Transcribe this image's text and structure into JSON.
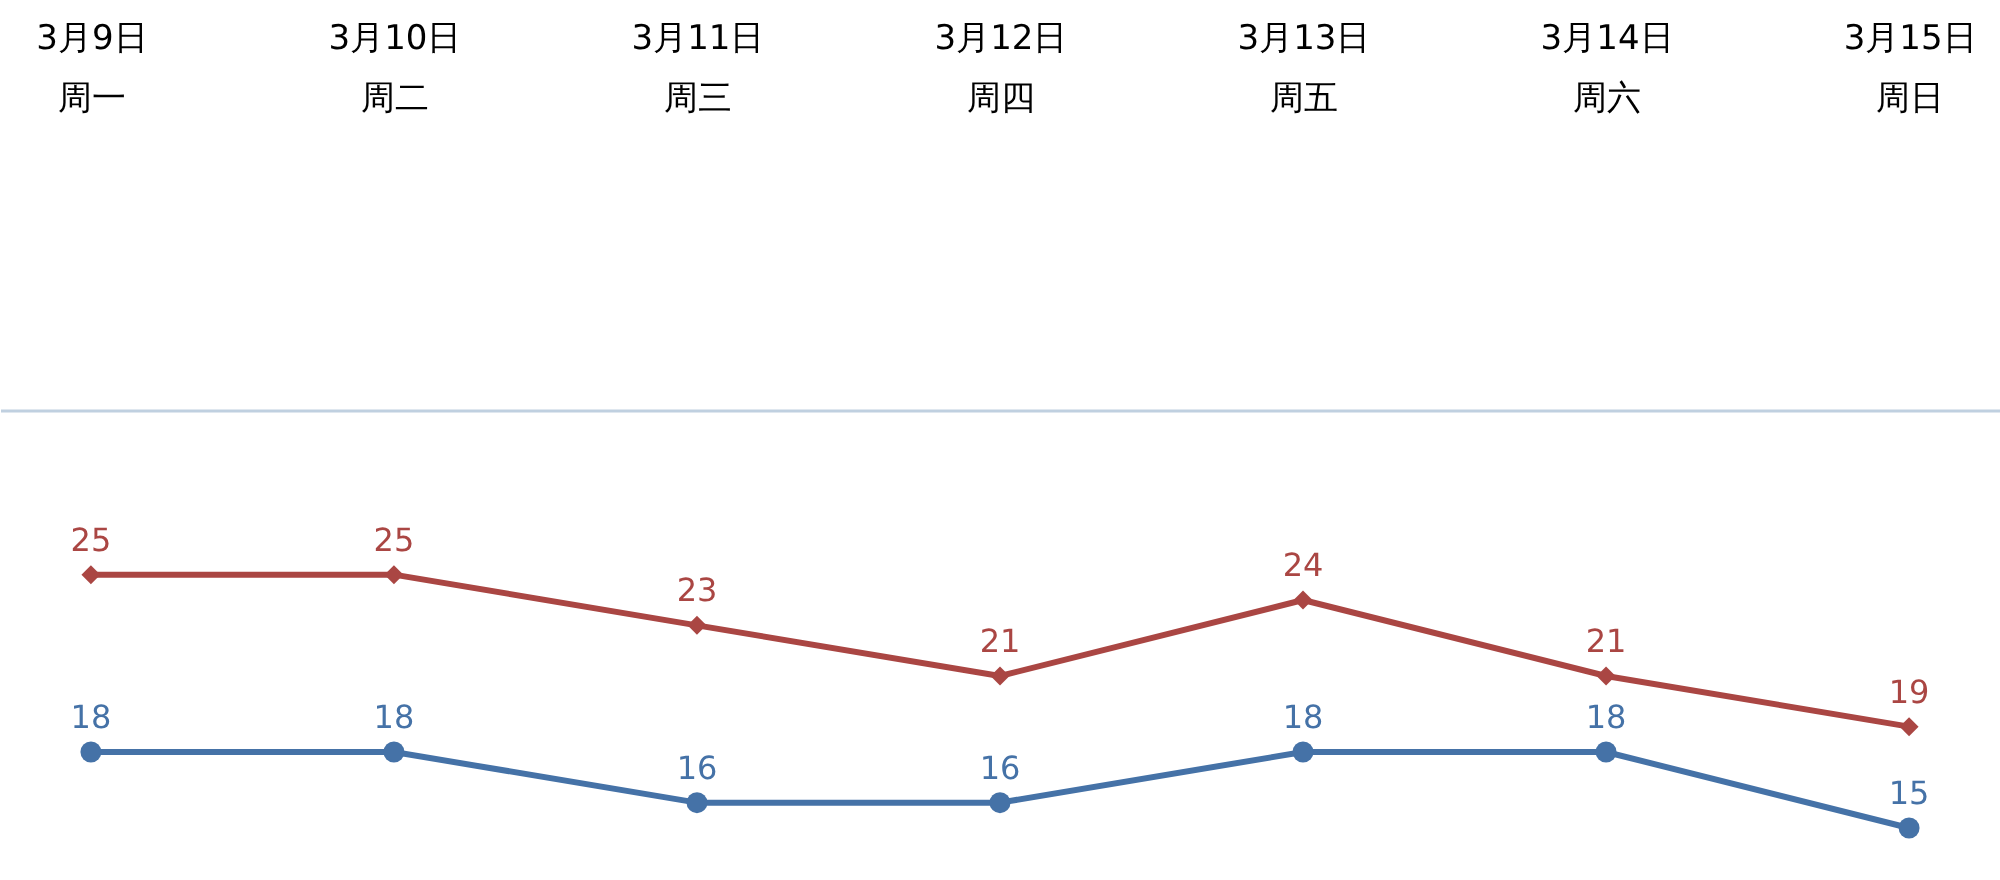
{
  "chart_data": {
    "type": "line",
    "categories": [
      "3月9日周一",
      "3月10日周二",
      "3月11日周三",
      "3月12日周四",
      "3月13日周五",
      "3月14日周六",
      "3月15日周日"
    ],
    "series": [
      {
        "color": "#aa4643",
        "marker": "diamond",
        "values": [
          25,
          25,
          23,
          21,
          24,
          21,
          19
        ]
      },
      {
        "color": "#4572a7",
        "marker": "circle",
        "values": [
          18,
          18,
          16,
          16,
          18,
          18,
          15
        ]
      }
    ],
    "ylim": [
      13.5,
      31.5
    ],
    "tick_labels": "x",
    "data_labels": true,
    "line_style": "solid"
  }
}
